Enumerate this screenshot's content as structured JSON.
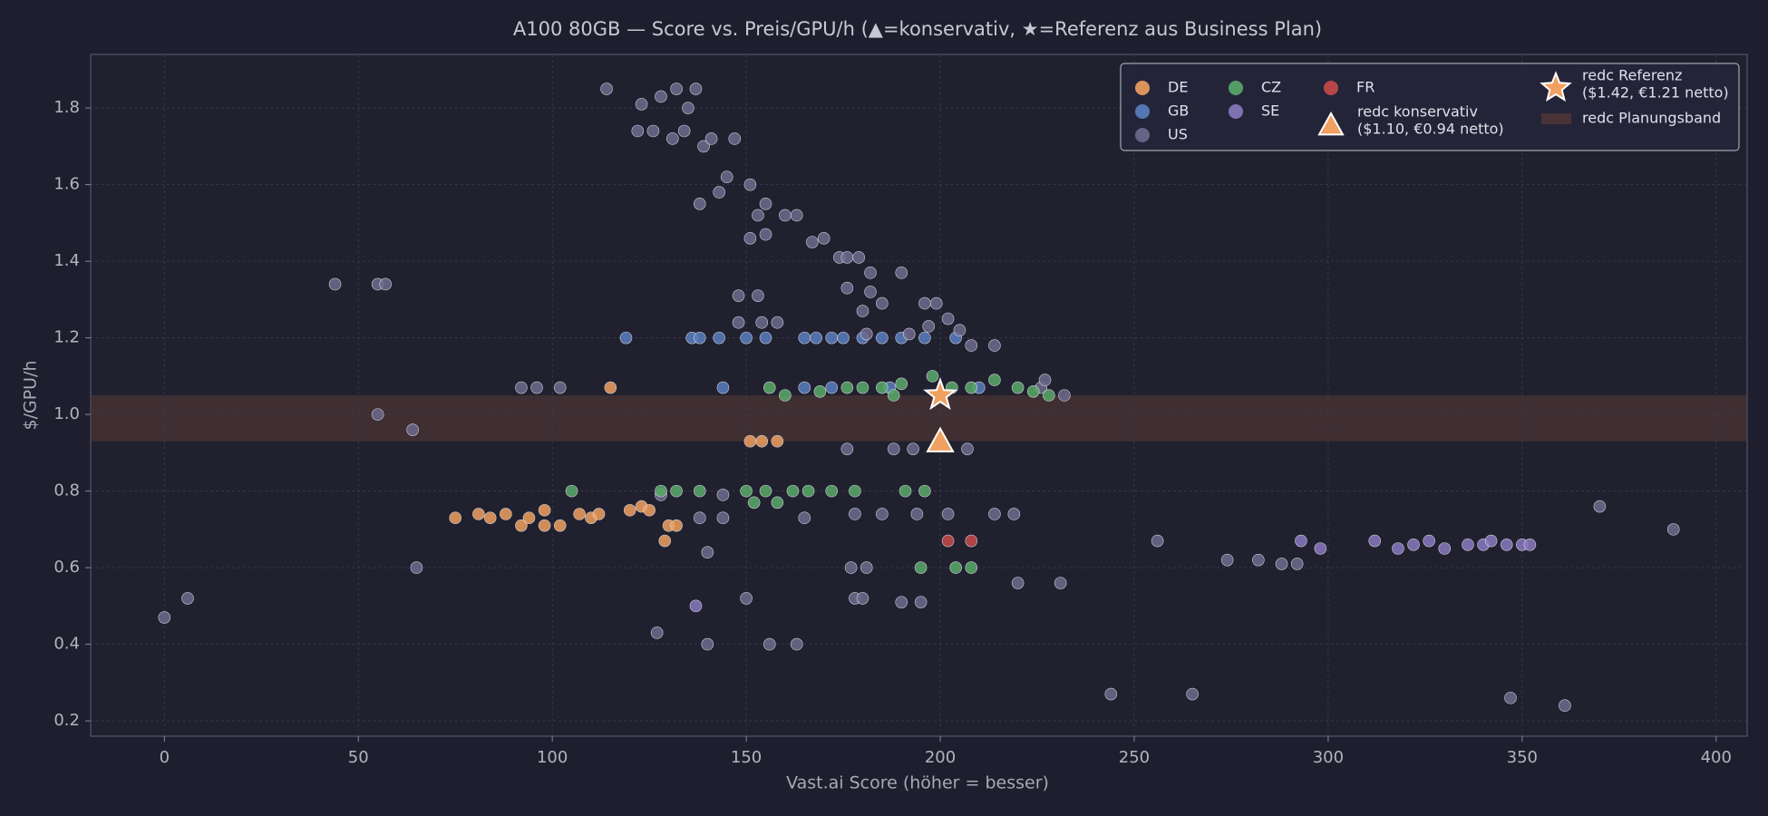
{
  "chart_data": {
    "type": "scatter",
    "title": "A100 80GB — Score vs. Preis/GPU/h (▲=konservativ, ★=Referenz aus Business Plan)",
    "x_label": "Vast.ai Score (höher = besser)",
    "y_label": "$/GPU/h",
    "xlim": [
      -19,
      408
    ],
    "ylim": [
      0.16,
      1.94
    ],
    "xticks": [
      0,
      50,
      100,
      150,
      200,
      250,
      300,
      350,
      400
    ],
    "yticks": [
      0.2,
      0.4,
      0.6,
      0.8,
      {
        "value": 1,
        "label": "1.0"
      },
      1.2,
      1.4,
      1.6,
      1.8
    ],
    "grid": true,
    "legend": "upper right",
    "series": [
      {
        "name": "DE",
        "color": "#f0a060",
        "x": [
          75,
          81,
          84,
          88,
          92,
          94,
          98,
          98,
          102,
          107,
          110,
          112,
          115,
          120,
          123,
          125,
          129,
          130,
          132,
          151,
          154,
          158
        ],
        "values": [
          0.73,
          0.74,
          0.73,
          0.74,
          0.71,
          0.73,
          0.75,
          0.71,
          0.71,
          0.74,
          0.73,
          0.74,
          1.07,
          0.75,
          0.76,
          0.75,
          0.67,
          0.71,
          0.71,
          0.93,
          0.93,
          0.93
        ]
      },
      {
        "name": "GB",
        "color": "#5a7fc0",
        "x": [
          119,
          136,
          138,
          143,
          144,
          150,
          155,
          165,
          168,
          172,
          175,
          180,
          185,
          190,
          196,
          204,
          165,
          172,
          187,
          210
        ],
        "values": [
          1.2,
          1.2,
          1.2,
          1.2,
          1.07,
          1.2,
          1.2,
          1.2,
          1.2,
          1.2,
          1.2,
          1.2,
          1.2,
          1.2,
          1.2,
          1.2,
          1.07,
          1.07,
          1.07,
          1.07
        ]
      },
      {
        "name": "US",
        "color": "#6e6a8e",
        "x": [
          44,
          55,
          57,
          55,
          64,
          65,
          6,
          0,
          92,
          96,
          102,
          114,
          123,
          128,
          132,
          135,
          137,
          122,
          126,
          131,
          134,
          139,
          147,
          141,
          145,
          151,
          143,
          155,
          138,
          153,
          160,
          163,
          167,
          151,
          155,
          170,
          174,
          176,
          179,
          176,
          182,
          185,
          180,
          148,
          153,
          148,
          154,
          158,
          182,
          190,
          196,
          199,
          202,
          205,
          208,
          214,
          192,
          181,
          197,
          226,
          227,
          232,
          176,
          188,
          193,
          207,
          144,
          138,
          144,
          165,
          178,
          185,
          194,
          202,
          214,
          219,
          128,
          140,
          178,
          180,
          190,
          195,
          150,
          127,
          140,
          156,
          163,
          177,
          181,
          220,
          231,
          256,
          274,
          282,
          288,
          292,
          244,
          265,
          347,
          361,
          370,
          389
        ],
        "values": [
          1.34,
          1.34,
          1.34,
          1.0,
          0.96,
          0.6,
          0.52,
          0.47,
          1.07,
          1.07,
          1.07,
          1.85,
          1.81,
          1.83,
          1.85,
          1.8,
          1.85,
          1.74,
          1.74,
          1.72,
          1.74,
          1.7,
          1.72,
          1.72,
          1.62,
          1.6,
          1.58,
          1.55,
          1.55,
          1.52,
          1.52,
          1.52,
          1.45,
          1.46,
          1.47,
          1.46,
          1.41,
          1.41,
          1.41,
          1.33,
          1.32,
          1.29,
          1.27,
          1.31,
          1.31,
          1.24,
          1.24,
          1.24,
          1.37,
          1.37,
          1.29,
          1.29,
          1.25,
          1.22,
          1.18,
          1.18,
          1.21,
          1.21,
          1.23,
          1.07,
          1.09,
          1.05,
          0.91,
          0.91,
          0.91,
          0.91,
          0.79,
          0.73,
          0.73,
          0.73,
          0.74,
          0.74,
          0.74,
          0.74,
          0.74,
          0.74,
          0.79,
          0.64,
          0.52,
          0.52,
          0.51,
          0.51,
          0.52,
          0.43,
          0.4,
          0.4,
          0.4,
          0.6,
          0.6,
          0.56,
          0.56,
          0.67,
          0.62,
          0.62,
          0.61,
          0.61,
          0.27,
          0.27,
          0.26,
          0.24,
          0.76,
          0.7
        ]
      },
      {
        "name": "CZ",
        "color": "#5aaa6a",
        "x": [
          105,
          128,
          132,
          138,
          150,
          155,
          152,
          158,
          162,
          166,
          172,
          178,
          191,
          196,
          180,
          156,
          160,
          169,
          176,
          185,
          188,
          190,
          198,
          203,
          208,
          214,
          220,
          224,
          228,
          195,
          204,
          208
        ],
        "values": [
          0.8,
          0.8,
          0.8,
          0.8,
          0.8,
          0.8,
          0.77,
          0.77,
          0.8,
          0.8,
          0.8,
          0.8,
          0.8,
          0.8,
          1.07,
          1.07,
          1.05,
          1.06,
          1.07,
          1.07,
          1.05,
          1.08,
          1.1,
          1.07,
          1.07,
          1.09,
          1.07,
          1.06,
          1.05,
          0.6,
          0.6,
          0.6
        ]
      },
      {
        "name": "SE",
        "color": "#8a7ac0",
        "x": [
          137,
          293,
          298,
          312,
          318,
          322,
          326,
          330,
          336,
          340,
          342,
          346,
          350,
          352
        ],
        "values": [
          0.5,
          0.67,
          0.65,
          0.67,
          0.65,
          0.66,
          0.67,
          0.65,
          0.66,
          0.66,
          0.67,
          0.66,
          0.66,
          0.66
        ]
      },
      {
        "name": "FR",
        "color": "#c84a4a",
        "x": [
          202,
          208
        ],
        "values": [
          0.67,
          0.67
        ]
      }
    ],
    "conservative": {
      "label": [
        "redc konservativ",
        "($1.10, €0.94 netto)"
      ],
      "marker": "triangle",
      "color": "#f0a060",
      "x": 200,
      "y": 0.93
    },
    "reference": {
      "label": [
        "redc Referenz",
        "($1.42, €1.21 netto)"
      ],
      "marker": "star",
      "color": "#f0a060",
      "x": 200,
      "y": 1.05
    },
    "band": {
      "label": "redc Planungsband",
      "color": "#5a3a34",
      "range": [
        0.93,
        1.05
      ]
    }
  }
}
